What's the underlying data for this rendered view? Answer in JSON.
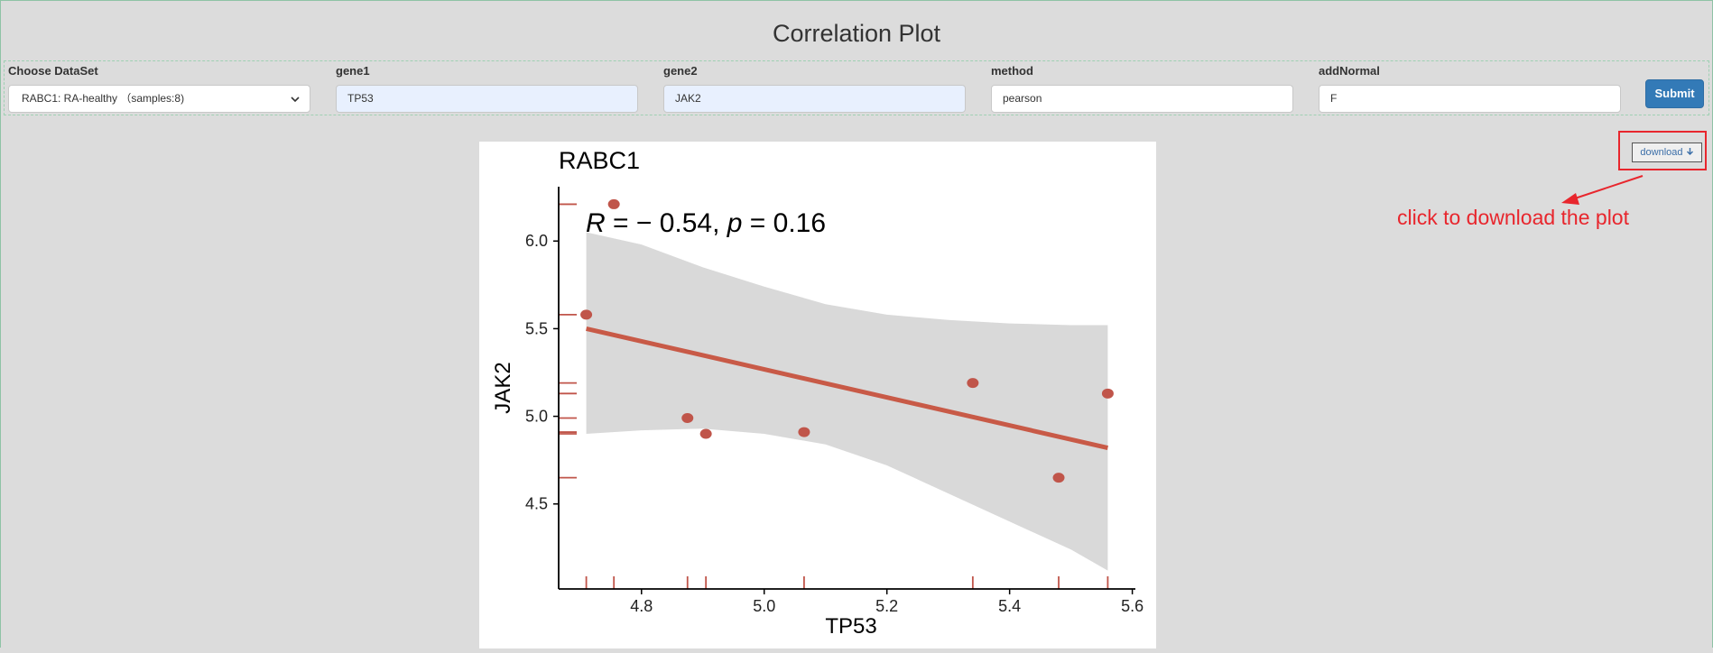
{
  "page": {
    "title": "Correlation Plot"
  },
  "form": {
    "dataset": {
      "label": "Choose DataSet",
      "value": "RABC1: RA-healthy （samples:8)"
    },
    "gene1": {
      "label": "gene1",
      "value": "TP53"
    },
    "gene2": {
      "label": "gene2",
      "value": "JAK2"
    },
    "method": {
      "label": "method",
      "value": "pearson"
    },
    "addNormal": {
      "label": "addNormal",
      "value": "F"
    },
    "submit_label": "Submit"
  },
  "download": {
    "label": "download",
    "icon": "arrow-down-icon"
  },
  "annotation": {
    "text": "click to download the plot",
    "color": "#e8262d"
  },
  "chart_data": {
    "type": "scatter",
    "title": "RABC1",
    "xlabel": "TP53",
    "ylabel": "JAK2",
    "stat_label": {
      "r_symbol": "R",
      "r_text": " = − 0.54, ",
      "p_symbol": "p",
      "p_text": " = 0.16"
    },
    "xlim": [
      4.665,
      5.605
    ],
    "ylim": [
      4.015,
      6.31
    ],
    "x_ticks": [
      4.8,
      5.0,
      5.2,
      5.4,
      5.6
    ],
    "x_tick_labels": [
      "4.8",
      "5.0",
      "5.2",
      "5.4",
      "5.6"
    ],
    "y_ticks": [
      4.5,
      5.0,
      5.5,
      6.0
    ],
    "y_tick_labels": [
      "4.5",
      "5.0",
      "5.5",
      "6.0"
    ],
    "points": [
      {
        "x": 4.71,
        "y": 5.58
      },
      {
        "x": 4.755,
        "y": 6.21
      },
      {
        "x": 4.875,
        "y": 4.99
      },
      {
        "x": 4.905,
        "y": 4.9
      },
      {
        "x": 5.065,
        "y": 4.91
      },
      {
        "x": 5.34,
        "y": 5.19
      },
      {
        "x": 5.48,
        "y": 4.65
      },
      {
        "x": 5.56,
        "y": 5.13
      }
    ],
    "fit_line": {
      "x": [
        4.71,
        5.56
      ],
      "y": [
        5.5,
        4.82
      ]
    },
    "confidence_band": {
      "x": [
        4.71,
        4.8,
        4.9,
        5.0,
        5.1,
        5.2,
        5.3,
        5.4,
        5.5,
        5.56
      ],
      "upper": [
        6.05,
        5.98,
        5.85,
        5.74,
        5.64,
        5.58,
        5.55,
        5.53,
        5.52,
        5.52
      ],
      "lower": [
        4.9,
        4.92,
        4.93,
        4.9,
        4.84,
        4.72,
        4.56,
        4.4,
        4.24,
        4.12
      ]
    },
    "grid": false,
    "legend": "none",
    "point_color": "#c0554a",
    "line_color": "#c85a47",
    "band_color": "#d9d9d9"
  }
}
